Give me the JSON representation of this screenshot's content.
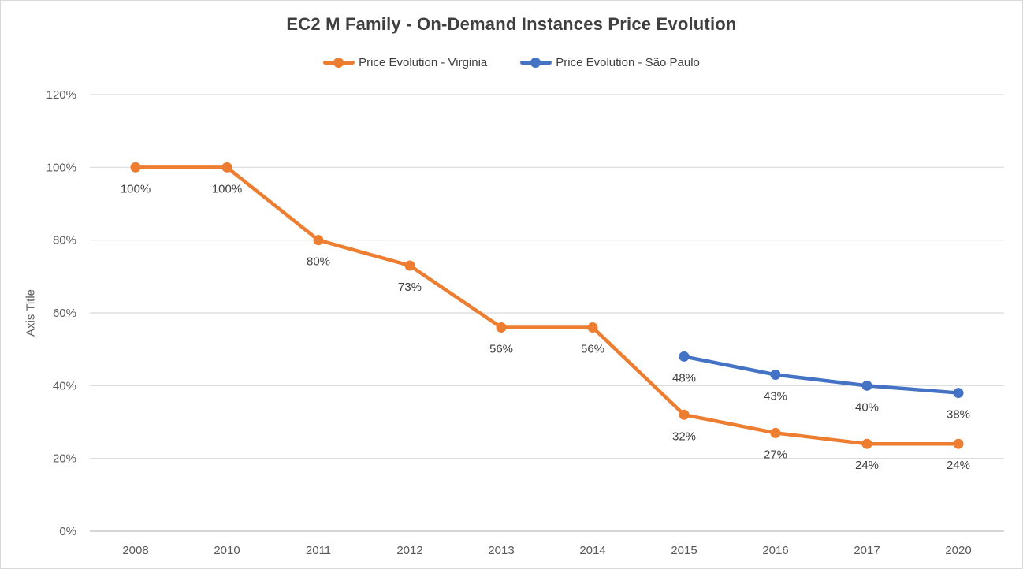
{
  "chart_data": {
    "type": "line",
    "title": "EC2 M Family - On-Demand Instances Price Evolution",
    "xlabel": "",
    "ylabel": "Axis Title",
    "categories": [
      "2008",
      "2010",
      "2011",
      "2012",
      "2013",
      "2014",
      "2015",
      "2016",
      "2017",
      "2020"
    ],
    "series": [
      {
        "name": "Price Evolution - Virginia",
        "color": "#ED7D31",
        "values": [
          100,
          100,
          80,
          73,
          56,
          56,
          32,
          27,
          24,
          24
        ],
        "data_labels": [
          "100%",
          "100%",
          "80%",
          "73%",
          "56%",
          "56%",
          "32%",
          "27%",
          "24%",
          "24%"
        ]
      },
      {
        "name": "Price Evolution - São Paulo",
        "color": "#4472C4",
        "values": [
          null,
          null,
          null,
          null,
          null,
          null,
          48,
          43,
          40,
          38
        ],
        "data_labels": [
          null,
          null,
          null,
          null,
          null,
          null,
          "48%",
          "43%",
          "40%",
          "38%"
        ]
      }
    ],
    "y_axis": {
      "min": 0,
      "max": 120,
      "step": 20,
      "tick_labels": [
        "0%",
        "20%",
        "40%",
        "60%",
        "80%",
        "100%",
        "120%"
      ]
    },
    "grid": true,
    "legend_position": "top",
    "colors": {
      "title_text": "#3F3F3F",
      "legend_text": "#404040",
      "axis_text": "#595959",
      "data_label_text": "#404040",
      "gridline": "#D9D9D9",
      "axis_line": "#C9C9C9",
      "background": "#FFFFFF",
      "border": "#D7D7D7"
    }
  }
}
